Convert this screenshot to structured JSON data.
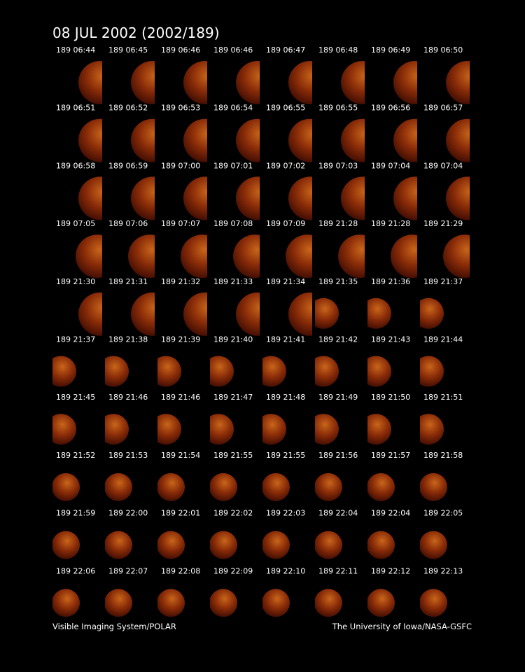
{
  "title": "08 JUL 2002  (2002/189)",
  "frames": [
    "189 06:44",
    "189 06:45",
    "189 06:46",
    "189 06:46",
    "189 06:47",
    "189 06:48",
    "189 06:49",
    "189 06:50",
    "189 06:51",
    "189 06:52",
    "189 06:53",
    "189 06:54",
    "189 06:55",
    "189 06:55",
    "189 06:56",
    "189 06:57",
    "189 06:58",
    "189 06:59",
    "189 07:00",
    "189 07:01",
    "189 07:02",
    "189 07:03",
    "189 07:04",
    "189 07:04",
    "189 07:05",
    "189 07:06",
    "189 07:07",
    "189 07:08",
    "189 07:09",
    "189 21:28",
    "189 21:28",
    "189 21:29",
    "189 21:30",
    "189 21:31",
    "189 21:32",
    "189 21:33",
    "189 21:34",
    "189 21:35",
    "189 21:36",
    "189 21:37",
    "189 21:37",
    "189 21:38",
    "189 21:39",
    "189 21:40",
    "189 21:41",
    "189 21:42",
    "189 21:43",
    "189 21:44",
    "189 21:45",
    "189 21:46",
    "189 21:46",
    "189 21:47",
    "189 21:48",
    "189 21:49",
    "189 21:50",
    "189 21:51",
    "189 21:52",
    "189 21:53",
    "189 21:54",
    "189 21:55",
    "189 21:55",
    "189 21:56",
    "189 21:57",
    "189 21:58",
    "189 21:59",
    "189 22:00",
    "189 22:01",
    "189 22:02",
    "189 22:03",
    "189 22:04",
    "189 22:04",
    "189 22:05",
    "189 22:06",
    "189 22:07",
    "189 22:08",
    "189 22:09",
    "189 22:10",
    "189 22:11",
    "189 22:12",
    "189 22:13"
  ],
  "footer": {
    "left": "Visible Imaging System/POLAR",
    "right": "The University of Iowa/NASA-GSFC"
  }
}
